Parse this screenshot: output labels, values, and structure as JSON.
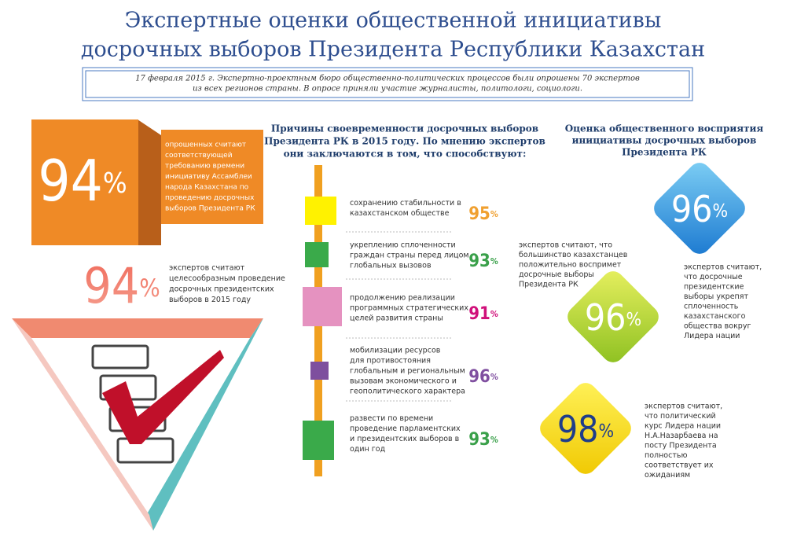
{
  "header": {
    "title_lines": [
      "Экспертные оценки общественной инициативы",
      "досрочных выборов Президента Республики Казахстан"
    ]
  },
  "intro": {
    "lines": [
      "17 февраля 2015 г. Экспертно-проектным бюро общественно-политических процессов были опрошены 70 экспертов",
      "из всех регионов страны. В опросе приняли участие журналисты, политологи, социологи."
    ]
  },
  "left": [
    {
      "value": 94,
      "unit": "%",
      "lines": [
        "опрошенных считают",
        "соответствующей",
        "требованию времени",
        "инициативу Ассамблеи",
        "народа Казахстана по",
        "проведению досрочных",
        "выборов Президента РК"
      ]
    },
    {
      "value": 94,
      "unit": "%",
      "lines": [
        "экспертов считают",
        "целесообразным проведение",
        "досрочных президентских",
        "выборов в 2015 году"
      ]
    }
  ],
  "middle": {
    "heading_lines": [
      "Причины своевременности досрочных выборов",
      "Президента РК в 2015 году. По мнению экспертов",
      "они заключаются в том, что способствуют:"
    ],
    "items": [
      {
        "value": 95,
        "unit": "%",
        "lines": [
          "сохранению стабильности в",
          "казахстанском обществе"
        ]
      },
      {
        "value": 93,
        "unit": "%",
        "lines": [
          "укреплению сплоченности",
          "граждан страны перед лицом",
          "глобальных вызовов"
        ]
      },
      {
        "value": 91,
        "unit": "%",
        "lines": [
          "продолжению реализации",
          "программных стратегических",
          "целей развития страны"
        ]
      },
      {
        "value": 96,
        "unit": "%",
        "lines": [
          "мобилизации ресурсов",
          "для противостояния",
          "глобальным и региональным",
          "вызовам экономического и",
          "геополитического характера"
        ]
      },
      {
        "value": 93,
        "unit": "%",
        "lines": [
          "развести по времени",
          "проведение парламентских",
          "и президентских выборов в",
          "один год"
        ]
      }
    ]
  },
  "right": {
    "heading_lines": [
      "Оценка общественного восприятия",
      "инициативы досрочных выборов",
      "Президента РК"
    ],
    "items": [
      {
        "value": 96,
        "unit": "%",
        "lines": [
          "экспертов считают, что",
          "большинство казахстанцев",
          "положительно воспримет",
          "досрочные выборы",
          "Президента РК"
        ]
      },
      {
        "value": 96,
        "unit": "%",
        "lines": [
          "экспертов считают,",
          "что досрочные",
          "президентские",
          "выборы укрепят",
          "сплоченность",
          "казахстанского",
          "общества вокруг",
          "Лидера нации"
        ]
      },
      {
        "value": 98,
        "unit": "%",
        "lines": [
          "экспертов считают,",
          "что политический",
          "курс Лидера нации",
          "Н.А.Назарбаева на",
          "посту Президента",
          "полностью",
          "соответствует их",
          "ожиданиям"
        ]
      }
    ]
  }
}
